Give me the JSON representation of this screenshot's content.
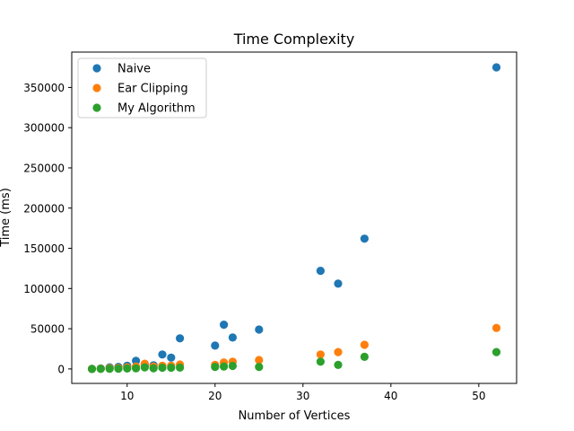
{
  "chart_data": {
    "type": "scatter",
    "title": "Time Complexity",
    "xlabel": "Number of Vertices",
    "ylabel": "Time (ms)",
    "xlim": [
      3.7,
      54.3
    ],
    "ylim": [
      -18000,
      394000
    ],
    "xticks": [
      10,
      20,
      30,
      40,
      50
    ],
    "yticks": [
      0,
      50000,
      100000,
      150000,
      200000,
      250000,
      300000,
      350000
    ],
    "grid": false,
    "legend_position": "top-left",
    "series": [
      {
        "name": "Naive",
        "color": "#1f77b4",
        "points": [
          [
            6,
            0
          ],
          [
            7,
            500
          ],
          [
            8,
            2000
          ],
          [
            9,
            2500
          ],
          [
            10,
            4000
          ],
          [
            11,
            10000
          ],
          [
            12,
            5000
          ],
          [
            13,
            4500
          ],
          [
            14,
            18000
          ],
          [
            15,
            14000
          ],
          [
            16,
            38000
          ],
          [
            20,
            29000
          ],
          [
            21,
            55000
          ],
          [
            22,
            39000
          ],
          [
            25,
            49000
          ],
          [
            32,
            122000
          ],
          [
            34,
            106000
          ],
          [
            37,
            162000
          ],
          [
            52,
            375000
          ]
        ]
      },
      {
        "name": "Ear Clipping",
        "color": "#ff7f0e",
        "points": [
          [
            6,
            0
          ],
          [
            7,
            300
          ],
          [
            8,
            1000
          ],
          [
            9,
            1200
          ],
          [
            10,
            2000
          ],
          [
            11,
            3000
          ],
          [
            12,
            6500
          ],
          [
            13,
            3000
          ],
          [
            14,
            4000
          ],
          [
            15,
            4000
          ],
          [
            16,
            5500
          ],
          [
            20,
            5000
          ],
          [
            21,
            8000
          ],
          [
            22,
            9000
          ],
          [
            25,
            11000
          ],
          [
            32,
            18000
          ],
          [
            34,
            21000
          ],
          [
            37,
            30000
          ],
          [
            52,
            51000
          ]
        ]
      },
      {
        "name": "My Algorithm",
        "color": "#2ca02c",
        "points": [
          [
            6,
            0
          ],
          [
            7,
            100
          ],
          [
            8,
            200
          ],
          [
            9,
            300
          ],
          [
            10,
            500
          ],
          [
            11,
            800
          ],
          [
            12,
            2000
          ],
          [
            13,
            900
          ],
          [
            14,
            1500
          ],
          [
            15,
            1500
          ],
          [
            16,
            1700
          ],
          [
            20,
            2500
          ],
          [
            21,
            3000
          ],
          [
            22,
            3800
          ],
          [
            25,
            2500
          ],
          [
            32,
            9000
          ],
          [
            34,
            5000
          ],
          [
            37,
            15000
          ],
          [
            52,
            21000
          ]
        ]
      }
    ]
  }
}
